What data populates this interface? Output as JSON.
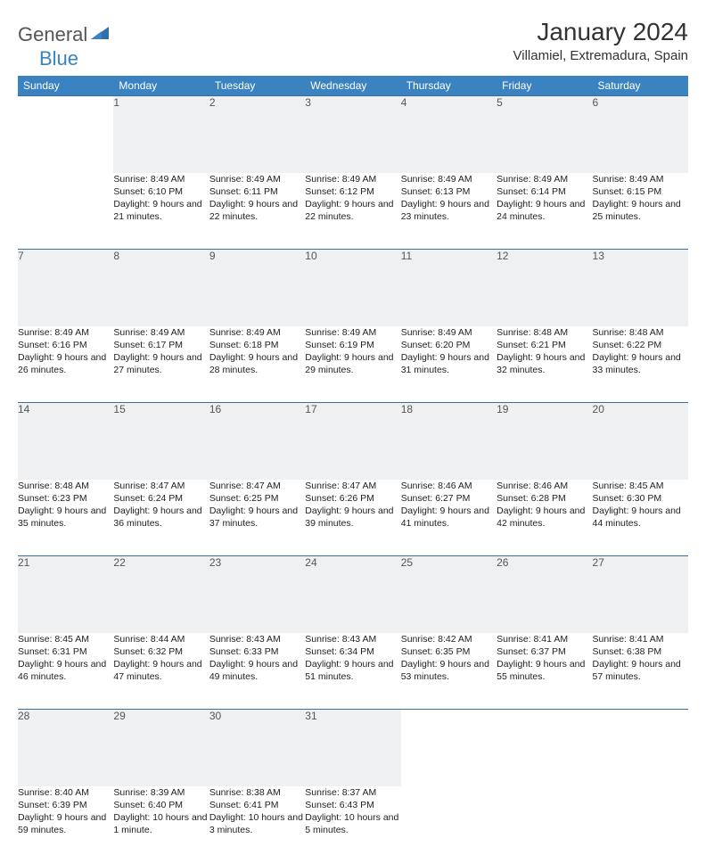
{
  "logo": {
    "general": "General",
    "blue": "Blue"
  },
  "title": "January 2024",
  "location": "Villamiel, Extremadura, Spain",
  "colors": {
    "header_bg": "#3b83c0",
    "header_text": "#ffffff",
    "daynum_bg": "#eef0f2",
    "rule": "#3b6e9c",
    "body_text": "#222222",
    "logo_gray": "#555555",
    "logo_blue": "#3b83c0",
    "page_bg": "#ffffff"
  },
  "weekdays": [
    "Sunday",
    "Monday",
    "Tuesday",
    "Wednesday",
    "Thursday",
    "Friday",
    "Saturday"
  ],
  "weeks": [
    [
      null,
      {
        "n": "1",
        "sr": "8:49 AM",
        "ss": "6:10 PM",
        "dl": "9 hours and 21 minutes."
      },
      {
        "n": "2",
        "sr": "8:49 AM",
        "ss": "6:11 PM",
        "dl": "9 hours and 22 minutes."
      },
      {
        "n": "3",
        "sr": "8:49 AM",
        "ss": "6:12 PM",
        "dl": "9 hours and 22 minutes."
      },
      {
        "n": "4",
        "sr": "8:49 AM",
        "ss": "6:13 PM",
        "dl": "9 hours and 23 minutes."
      },
      {
        "n": "5",
        "sr": "8:49 AM",
        "ss": "6:14 PM",
        "dl": "9 hours and 24 minutes."
      },
      {
        "n": "6",
        "sr": "8:49 AM",
        "ss": "6:15 PM",
        "dl": "9 hours and 25 minutes."
      }
    ],
    [
      {
        "n": "7",
        "sr": "8:49 AM",
        "ss": "6:16 PM",
        "dl": "9 hours and 26 minutes."
      },
      {
        "n": "8",
        "sr": "8:49 AM",
        "ss": "6:17 PM",
        "dl": "9 hours and 27 minutes."
      },
      {
        "n": "9",
        "sr": "8:49 AM",
        "ss": "6:18 PM",
        "dl": "9 hours and 28 minutes."
      },
      {
        "n": "10",
        "sr": "8:49 AM",
        "ss": "6:19 PM",
        "dl": "9 hours and 29 minutes."
      },
      {
        "n": "11",
        "sr": "8:49 AM",
        "ss": "6:20 PM",
        "dl": "9 hours and 31 minutes."
      },
      {
        "n": "12",
        "sr": "8:48 AM",
        "ss": "6:21 PM",
        "dl": "9 hours and 32 minutes."
      },
      {
        "n": "13",
        "sr": "8:48 AM",
        "ss": "6:22 PM",
        "dl": "9 hours and 33 minutes."
      }
    ],
    [
      {
        "n": "14",
        "sr": "8:48 AM",
        "ss": "6:23 PM",
        "dl": "9 hours and 35 minutes."
      },
      {
        "n": "15",
        "sr": "8:47 AM",
        "ss": "6:24 PM",
        "dl": "9 hours and 36 minutes."
      },
      {
        "n": "16",
        "sr": "8:47 AM",
        "ss": "6:25 PM",
        "dl": "9 hours and 37 minutes."
      },
      {
        "n": "17",
        "sr": "8:47 AM",
        "ss": "6:26 PM",
        "dl": "9 hours and 39 minutes."
      },
      {
        "n": "18",
        "sr": "8:46 AM",
        "ss": "6:27 PM",
        "dl": "9 hours and 41 minutes."
      },
      {
        "n": "19",
        "sr": "8:46 AM",
        "ss": "6:28 PM",
        "dl": "9 hours and 42 minutes."
      },
      {
        "n": "20",
        "sr": "8:45 AM",
        "ss": "6:30 PM",
        "dl": "9 hours and 44 minutes."
      }
    ],
    [
      {
        "n": "21",
        "sr": "8:45 AM",
        "ss": "6:31 PM",
        "dl": "9 hours and 46 minutes."
      },
      {
        "n": "22",
        "sr": "8:44 AM",
        "ss": "6:32 PM",
        "dl": "9 hours and 47 minutes."
      },
      {
        "n": "23",
        "sr": "8:43 AM",
        "ss": "6:33 PM",
        "dl": "9 hours and 49 minutes."
      },
      {
        "n": "24",
        "sr": "8:43 AM",
        "ss": "6:34 PM",
        "dl": "9 hours and 51 minutes."
      },
      {
        "n": "25",
        "sr": "8:42 AM",
        "ss": "6:35 PM",
        "dl": "9 hours and 53 minutes."
      },
      {
        "n": "26",
        "sr": "8:41 AM",
        "ss": "6:37 PM",
        "dl": "9 hours and 55 minutes."
      },
      {
        "n": "27",
        "sr": "8:41 AM",
        "ss": "6:38 PM",
        "dl": "9 hours and 57 minutes."
      }
    ],
    [
      {
        "n": "28",
        "sr": "8:40 AM",
        "ss": "6:39 PM",
        "dl": "9 hours and 59 minutes."
      },
      {
        "n": "29",
        "sr": "8:39 AM",
        "ss": "6:40 PM",
        "dl": "10 hours and 1 minute."
      },
      {
        "n": "30",
        "sr": "8:38 AM",
        "ss": "6:41 PM",
        "dl": "10 hours and 3 minutes."
      },
      {
        "n": "31",
        "sr": "8:37 AM",
        "ss": "6:43 PM",
        "dl": "10 hours and 5 minutes."
      },
      null,
      null,
      null
    ]
  ],
  "labels": {
    "sunrise": "Sunrise: ",
    "sunset": "Sunset: ",
    "daylight": "Daylight: "
  }
}
